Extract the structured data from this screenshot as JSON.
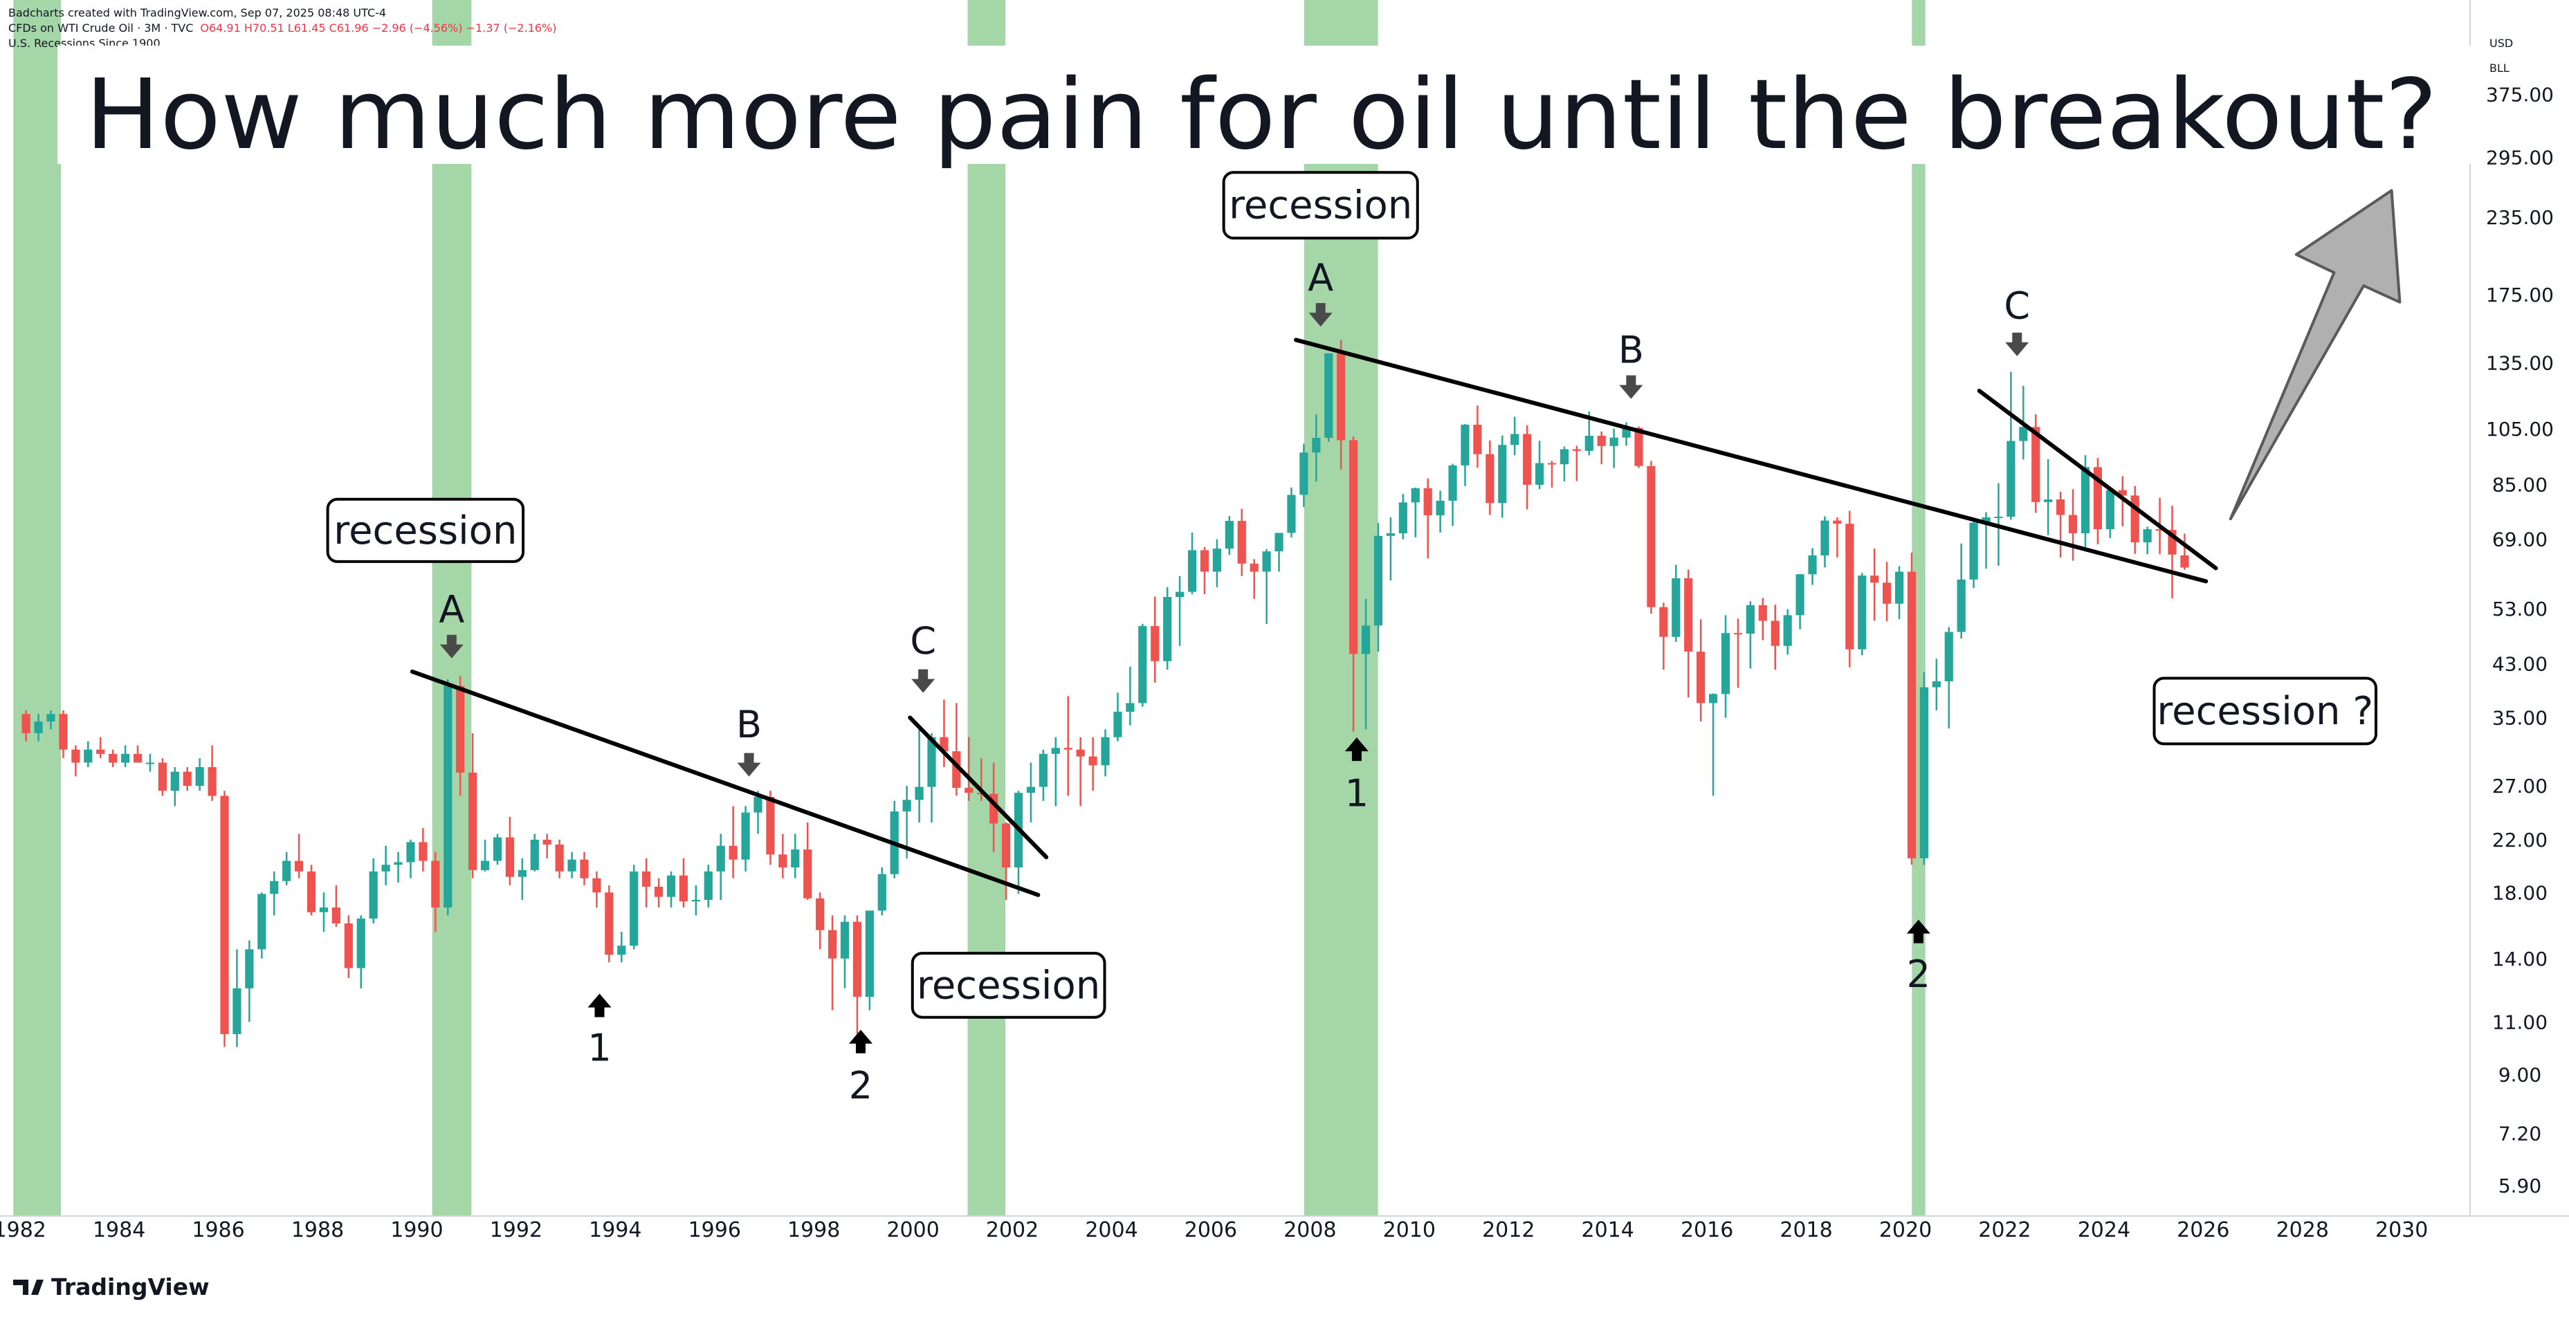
{
  "chart_data": {
    "type": "candlestick",
    "attribution": "Badcharts created with TradingView.com, Sep 07, 2025 08:48 UTC-4",
    "title": "How much more pain for oil until the breakout?",
    "currency": "USD",
    "unit": "BLL",
    "footer_brand": "TradingView",
    "ohlc_readout": "O64.91 H70.51 L61.45 C61.96 −2.96 (−4.56%) −1.37 (−2.16%)",
    "log_scale": true,
    "grid": false,
    "xlim": [
      1981.6,
      2031.35
    ],
    "xticks": [
      1982,
      1984,
      1986,
      1988,
      1990,
      1992,
      1994,
      1996,
      1998,
      2000,
      2002,
      2004,
      2006,
      2008,
      2010,
      2012,
      2014,
      2016,
      2018,
      2020,
      2022,
      2024,
      2026,
      2028,
      2030
    ],
    "ylim": [
      5.27,
      537
    ],
    "yticks": [
      {
        "value": 5.9,
        "label": "5.90"
      },
      {
        "value": 7.2,
        "label": "7.20"
      },
      {
        "value": 9,
        "label": "9.00"
      },
      {
        "value": 11,
        "label": "11.00"
      },
      {
        "value": 14,
        "label": "14.00"
      },
      {
        "value": 18,
        "label": "18.00"
      },
      {
        "value": 22,
        "label": "22.00"
      },
      {
        "value": 27,
        "label": "27.00"
      },
      {
        "value": 35,
        "label": "35.00"
      },
      {
        "value": 43,
        "label": "43.00"
      },
      {
        "value": 53,
        "label": "53.00"
      },
      {
        "value": 69,
        "label": "69.00"
      },
      {
        "value": 85,
        "label": "85.00"
      },
      {
        "value": 105,
        "label": "105.00"
      },
      {
        "value": 135,
        "label": "135.00"
      },
      {
        "value": 175,
        "label": "175.00"
      },
      {
        "value": 235,
        "label": "235.00"
      },
      {
        "value": 295,
        "label": "295.00"
      },
      {
        "value": 375,
        "label": "375.00"
      }
    ],
    "recessions": {
      "name": "U.S. Recessions Since 1900",
      "color": "#a5d6a7",
      "periods": [
        [
          1981.87,
          1982.83
        ],
        [
          1990.31,
          1991.1
        ],
        [
          2001.1,
          2001.86
        ],
        [
          2007.88,
          2009.37
        ],
        [
          2020.13,
          2020.4
        ]
      ]
    },
    "annotations": [
      "recession",
      "recession",
      "recession",
      "recession ?",
      "A",
      "B",
      "C",
      "1",
      "2",
      "A",
      "B",
      "1",
      "C",
      "2"
    ],
    "x": [
      1982,
      1982.25,
      1982.5,
      1982.75,
      1983,
      1983.25,
      1983.5,
      1983.75,
      1984,
      1984.25,
      1984.5,
      1984.75,
      1985,
      1985.25,
      1985.5,
      1985.75,
      1986,
      1986.25,
      1986.5,
      1986.75,
      1987,
      1987.25,
      1987.5,
      1987.75,
      1988,
      1988.25,
      1988.5,
      1988.75,
      1989,
      1989.25,
      1989.5,
      1989.75,
      1990,
      1990.25,
      1990.5,
      1990.75,
      1991,
      1991.25,
      1991.5,
      1991.75,
      1992,
      1992.25,
      1992.5,
      1992.75,
      1993,
      1993.25,
      1993.5,
      1993.75,
      1994,
      1994.25,
      1994.5,
      1994.75,
      1995,
      1995.25,
      1995.5,
      1995.75,
      1996,
      1996.25,
      1996.5,
      1996.75,
      1997,
      1997.25,
      1997.5,
      1997.75,
      1998,
      1998.25,
      1998.5,
      1998.75,
      1999,
      1999.25,
      1999.5,
      1999.75,
      2000,
      2000.25,
      2000.5,
      2000.75,
      2001,
      2001.25,
      2001.5,
      2001.75,
      2002,
      2002.25,
      2002.5,
      2002.75,
      2003,
      2003.25,
      2003.5,
      2003.75,
      2004,
      2004.25,
      2004.5,
      2004.75,
      2005,
      2005.25,
      2005.5,
      2005.75,
      2006,
      2006.25,
      2006.5,
      2006.75,
      2007,
      2007.25,
      2007.5,
      2007.75,
      2008,
      2008.25,
      2008.5,
      2008.75,
      2009,
      2009.25,
      2009.5,
      2009.75,
      2010,
      2010.25,
      2010.5,
      2010.75,
      2011,
      2011.25,
      2011.5,
      2011.75,
      2012,
      2012.25,
      2012.5,
      2012.75,
      2013,
      2013.25,
      2013.5,
      2013.75,
      2014,
      2014.25,
      2014.5,
      2014.75,
      2015,
      2015.25,
      2015.5,
      2015.75,
      2016,
      2016.25,
      2016.5,
      2016.75,
      2017,
      2017.25,
      2017.5,
      2017.75,
      2018,
      2018.25,
      2018.5,
      2018.75,
      2019,
      2019.25,
      2019.5,
      2019.75,
      2020,
      2020.25,
      2020.5,
      2020.75,
      2021,
      2021.25,
      2021.5,
      2021.75,
      2022,
      2022.25,
      2022.5,
      2022.75,
      2023,
      2023.25,
      2023.5,
      2023.75,
      2024,
      2024.25,
      2024.5,
      2024.75,
      2025,
      2025.25,
      2025.5
    ],
    "series": [
      {
        "name": "CFDs on WTI Crude Oil · 3M · TVC",
        "up_color": "#26a69a",
        "down_color": "#ef5350",
        "open": [
          35.5,
          33,
          34.5,
          35.5,
          31,
          29.5,
          31,
          30.5,
          29.5,
          30.5,
          29.5,
          29.5,
          26.5,
          28.5,
          27,
          29,
          26,
          10.5,
          12.5,
          14.5,
          17.9,
          18.8,
          20.3,
          19.5,
          16.7,
          17,
          16,
          13.5,
          16.3,
          19.5,
          20,
          20.2,
          21.8,
          20.3,
          17,
          39.5,
          28.4,
          19.6,
          20.3,
          22.2,
          19.1,
          19.6,
          22,
          21.6,
          19.5,
          20.4,
          19,
          18,
          14.2,
          14.7,
          19.5,
          18.4,
          17.7,
          19.2,
          17.4,
          17.5,
          19.5,
          21.5,
          20.4,
          24.4,
          25.9,
          20.8,
          19.8,
          21.2,
          17.6,
          15.6,
          14,
          16.1,
          12.1,
          16.8,
          19.3,
          24.5,
          25.6,
          26.9,
          32.5,
          30.8,
          26.8,
          26.3,
          26.2,
          23.4,
          19.8,
          26.3,
          26.9,
          30.5,
          31.2,
          31,
          30.2,
          29.2,
          32.5,
          35.8,
          37,
          49.6,
          43.4,
          55.4,
          56.5,
          66.2,
          61,
          66.6,
          74,
          62.9,
          61,
          65.9,
          70.7,
          81.7,
          96,
          101.5,
          140,
          100.6,
          44.6,
          49.7,
          69.9,
          70.6,
          79.4,
          83.8,
          75.6,
          79.9,
          91.4,
          106.7,
          95.4,
          79.2,
          98.8,
          103,
          84.9,
          92.2,
          91.8,
          97.2,
          96.6,
          102.3,
          98.4,
          101.6,
          105.4,
          91.2,
          53.3,
          47.6,
          59.5,
          45,
          37,
          38.3,
          48.3,
          48.2,
          53.7,
          50.6,
          46,
          51.7,
          60.4,
          64.9,
          74.1,
          73.2,
          45.4,
          60.1,
          58.5,
          54,
          61,
          20.5,
          39.3,
          40.2,
          48.5,
          59.2,
          73.5,
          75,
          75.2,
          100.3,
          105.8,
          79.5,
          80.3,
          75.7,
          70.6,
          90.8,
          71.7,
          83.2,
          81.5,
          68.2,
          71.7,
          71.5,
          64.91
        ],
        "high": [
          36,
          35.5,
          36,
          36,
          31.5,
          32,
          32.5,
          31,
          31.5,
          31.5,
          30.5,
          30,
          29,
          29,
          30,
          31.5,
          26.5,
          14.5,
          15,
          18,
          19.5,
          21,
          22.5,
          20,
          18,
          18.5,
          16.5,
          16.5,
          20.5,
          21.5,
          21,
          22,
          23,
          21,
          40.5,
          41,
          33,
          22,
          22.5,
          24,
          20.5,
          22.5,
          22.5,
          22,
          21,
          21,
          19.5,
          18.5,
          15.5,
          20,
          20.5,
          19,
          19.5,
          20.5,
          18.5,
          20,
          22.5,
          25,
          25,
          26.5,
          26.5,
          22.5,
          22.5,
          23.5,
          18,
          16.5,
          16.5,
          16.5,
          16.8,
          19.8,
          25.5,
          27,
          34,
          33,
          37.5,
          37,
          32.5,
          30,
          29.5,
          23.5,
          26.5,
          29.5,
          31,
          32.5,
          38,
          32.5,
          32.5,
          33.5,
          38.5,
          42.5,
          50,
          55.5,
          57.5,
          60,
          70.8,
          67,
          69,
          75.4,
          77.5,
          64,
          66.5,
          70.5,
          84,
          99.3,
          111,
          140,
          147.3,
          102,
          55,
          73.4,
          75,
          82,
          84,
          87,
          83,
          92,
          107,
          114.8,
          100.5,
          102.4,
          110,
          106.5,
          100.4,
          93,
          98.2,
          98.5,
          112.2,
          104,
          105.2,
          107.7,
          106,
          93,
          54.2,
          62.6,
          61.5,
          50.9,
          38.4,
          51.7,
          51,
          54.5,
          55.2,
          53.8,
          52.9,
          60.5,
          66.7,
          75.3,
          75,
          76.9,
          60.7,
          66.6,
          63.3,
          62.3,
          65.6,
          41.6,
          43.8,
          49.4,
          67.9,
          74,
          76.5,
          85.4,
          130.5,
          123.7,
          111,
          93.6,
          82.7,
          83.5,
          95,
          94,
          83.6,
          87.7,
          84.5,
          72.4,
          80.8,
          78.4,
          70.51
        ],
        "low": [
          32,
          32,
          33.5,
          30,
          28,
          29,
          30,
          29,
          29,
          29.5,
          28.5,
          26,
          25,
          26.5,
          26.5,
          25.5,
          10,
          10,
          11,
          14,
          16.5,
          18.5,
          19,
          16.5,
          15.5,
          15.8,
          13,
          12.5,
          16,
          18.5,
          18.7,
          19,
          19.5,
          15.5,
          16.5,
          26,
          19,
          19.5,
          20,
          18.5,
          17.5,
          19.5,
          20.5,
          19,
          19,
          18.5,
          17,
          13.8,
          13.8,
          14.5,
          17,
          17,
          17,
          17,
          16.5,
          17,
          17.5,
          19,
          19.5,
          22.5,
          20,
          19,
          19,
          17.5,
          14.5,
          11.5,
          12.5,
          10.5,
          11.5,
          16.5,
          19,
          20.5,
          23.5,
          23.5,
          29,
          26,
          25.5,
          25.5,
          21,
          17.5,
          17.9,
          23.5,
          25.5,
          25,
          26,
          25,
          26.5,
          28,
          32,
          34,
          36.5,
          40,
          42,
          46,
          56,
          56,
          57.5,
          65,
          60,
          55,
          50,
          61,
          69.5,
          78,
          86,
          100,
          90,
          33.2,
          33.5,
          45,
          59,
          69,
          69.5,
          64.2,
          70.8,
          72.6,
          84.5,
          90.6,
          75.7,
          74.9,
          95,
          77.3,
          83.5,
          84,
          86,
          86.1,
          95,
          91.8,
          90.5,
          98.5,
          90.5,
          52,
          42,
          46.7,
          37.8,
          34.5,
          26,
          35,
          39.2,
          42.2,
          47,
          42,
          44.5,
          49,
          58,
          62,
          64.4,
          42.4,
          44.4,
          50.6,
          50.5,
          50.9,
          20,
          20,
          36,
          33.6,
          47.3,
          57.3,
          61.7,
          62.4,
          74.3,
          93.5,
          76.3,
          70.1,
          64.4,
          63.6,
          67,
          67.7,
          69.3,
          72.5,
          65.3,
          65.2,
          65.2,
          55.1,
          61.45
        ],
        "close": [
          33,
          34.5,
          35.5,
          31,
          29.5,
          31,
          30.5,
          29.5,
          30.5,
          29.5,
          29.5,
          26.5,
          28.5,
          27,
          29,
          26,
          10.5,
          12.5,
          14.5,
          17.9,
          18.8,
          20.3,
          19.5,
          16.7,
          17,
          16,
          13.5,
          16.3,
          19.5,
          20,
          20.2,
          21.8,
          20.3,
          17,
          39.5,
          28.4,
          19.6,
          20.3,
          22.2,
          19.1,
          19.6,
          22,
          21.6,
          19.5,
          20.4,
          19,
          18,
          14.2,
          14.7,
          19.5,
          18.4,
          17.7,
          19.2,
          17.4,
          17.5,
          19.5,
          21.5,
          20.4,
          24.4,
          25.9,
          20.8,
          19.8,
          21.2,
          17.6,
          15.6,
          14,
          16.1,
          12.1,
          16.8,
          19.3,
          24.5,
          25.6,
          26.9,
          32.5,
          30.8,
          26.8,
          26.3,
          26.2,
          23.4,
          19.8,
          26.3,
          26.9,
          30.5,
          31.2,
          31,
          30.2,
          29.2,
          32.5,
          35.8,
          37,
          49.6,
          43.4,
          55.4,
          56.5,
          66.2,
          61,
          66.6,
          74,
          62.9,
          61,
          65.9,
          70.7,
          81.7,
          96,
          101.5,
          140,
          100.6,
          44.6,
          49.7,
          69.9,
          70.6,
          79.4,
          83.8,
          75.6,
          79.9,
          91.4,
          106.7,
          95.4,
          79.2,
          98.8,
          103,
          84.9,
          92.2,
          91.8,
          97.2,
          96.6,
          102.3,
          98.4,
          101.6,
          105.4,
          91.2,
          53.3,
          47.6,
          59.5,
          45,
          37,
          38.3,
          48.3,
          48.2,
          53.7,
          50.6,
          46,
          51.7,
          60.4,
          64.9,
          74.1,
          73.2,
          45.4,
          60.1,
          58.5,
          54,
          61,
          20.5,
          39.3,
          40.2,
          48.5,
          59.2,
          73.5,
          75,
          75.2,
          100.3,
          105.8,
          79.5,
          80.3,
          75.7,
          70.6,
          90.8,
          71.7,
          83.2,
          81.5,
          68.2,
          71.7,
          71.5,
          65.1,
          61.96
        ]
      }
    ]
  }
}
